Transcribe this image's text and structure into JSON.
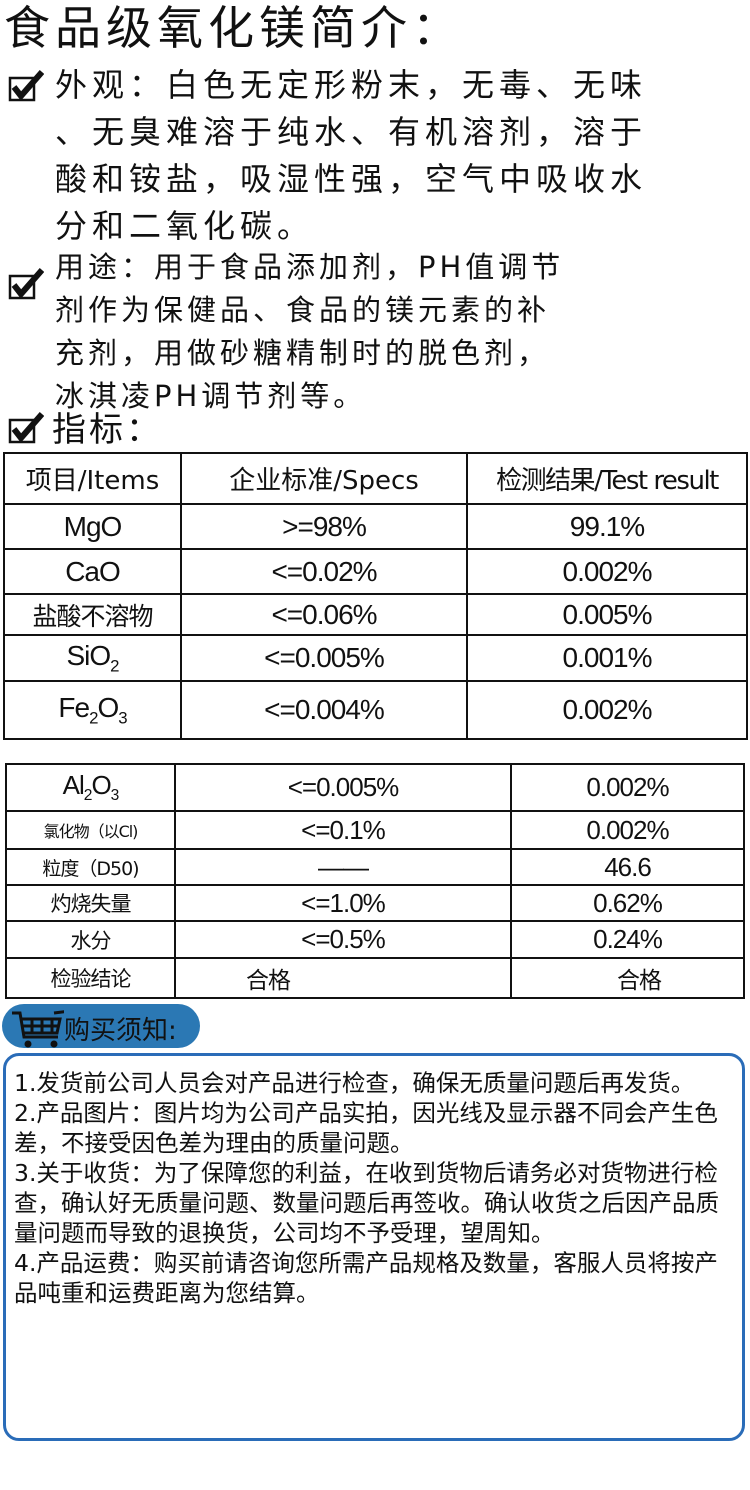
{
  "title": "食品级氧化镁简介：",
  "appearance": {
    "lines": [
      "外观：白色无定形粉末，无毒、无味",
      "、无臭难溶于纯水、有机溶剂，溶于",
      "酸和铵盐，吸湿性强，空气中吸收水",
      "分和二氧化碳。"
    ]
  },
  "usage": {
    "lines": [
      "用途：用于食品添加剂，PH值调节",
      "剂作为保健品、食品的镁元素的补",
      "充剂，用做砂糖精制时的脱色剂，",
      "冰淇凌PH调节剂等。"
    ]
  },
  "specs_heading": "指标：",
  "table1": {
    "headers": [
      "项目/Items",
      "企业标准/Specs",
      "检测结果/Test result"
    ],
    "rows": [
      [
        "MgO",
        ">=98%",
        "99.1%"
      ],
      [
        "CaO",
        "<=0.02%",
        "0.002%"
      ],
      [
        "盐酸不溶物",
        "<=0.06%",
        "0.005%"
      ],
      [
        "SiO2",
        "<=0.005%",
        "0.001%"
      ],
      [
        "Fe2O3",
        "<=0.004%",
        "0.002%"
      ]
    ]
  },
  "table2": {
    "rows": [
      [
        "Al2O3",
        "<=0.005%",
        "0.002%"
      ],
      [
        "氯化物（以Cl)",
        "<=0.1%",
        "0.002%"
      ],
      [
        "粒度（D50)",
        "——",
        "46.6"
      ],
      [
        "灼烧失量",
        "<=1.0%",
        "0.62%"
      ],
      [
        "水分",
        "<=0.5%",
        "0.24%"
      ],
      [
        "检验结论",
        "合格",
        "合格"
      ]
    ]
  },
  "notice": {
    "heading": "购买须知:",
    "items": [
      "1.发货前公司人员会对产品进行检查，确保无质量问题后再发货。",
      "2.产品图片：图片均为公司产品实拍，因光线及显示器不同会产生色差，不接受因色差为理由的质量问题。",
      "3.关于收货：为了保障您的利益，在收到货物后请务必对货物进行检查，确认好无质量问题、数量问题后再签收。确认收货之后因产品质量问题而导致的退换货，公司均不予受理，望周知。",
      "4.产品运费：购买前请咨询您所需产品规格及数量，客服人员将按产品吨重和运费距离为您结算。"
    ]
  },
  "colors": {
    "accent": "#2a6cb8",
    "pill": "#2b78b4"
  },
  "icons": [
    "checkbox-checked-icon",
    "shopping-cart-icon"
  ]
}
